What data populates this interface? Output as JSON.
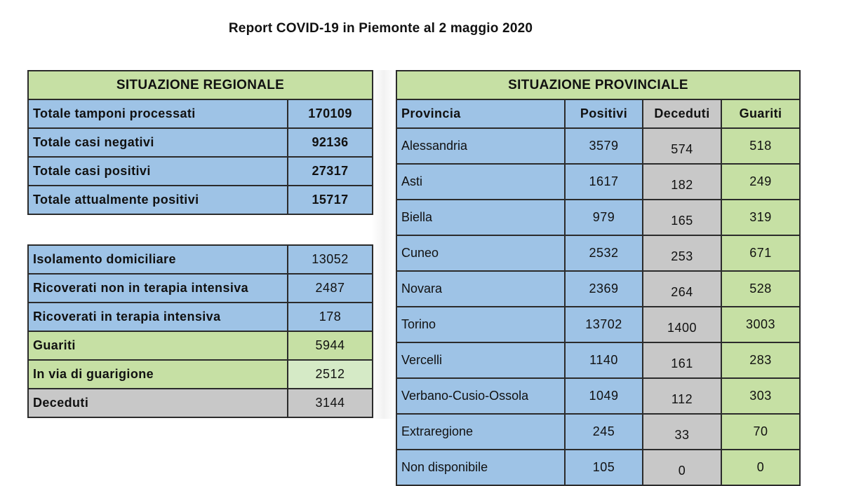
{
  "title": "Report COVID-19 in Piemonte al 2 maggio 2020",
  "regional": {
    "header": "SITUAZIONE REGIONALE",
    "totals": [
      {
        "label": "Totale tamponi processati",
        "value": "170109"
      },
      {
        "label": "Totale casi negativi",
        "value": "92136"
      },
      {
        "label": "Totale casi positivi",
        "value": "27317"
      },
      {
        "label": "Totale attualmente positivi",
        "value": "15717"
      }
    ],
    "breakdown": [
      {
        "label": "Isolamento domiciliare",
        "value": "13052"
      },
      {
        "label": "Ricoverati non in terapia intensiva",
        "value": "2487"
      },
      {
        "label": "Ricoverati in terapia intensiva",
        "value": "178"
      },
      {
        "label": "Guariti",
        "value": "5944"
      },
      {
        "label": "In via di guarigione",
        "value": "2512"
      },
      {
        "label": "Deceduti",
        "value": "3144"
      }
    ]
  },
  "provincial": {
    "header": "SITUAZIONE PROVINCIALE",
    "columns": [
      "Provincia",
      "Positivi",
      "Deceduti",
      "Guariti"
    ],
    "rows": [
      {
        "provincia": "Alessandria",
        "positivi": "3579",
        "deceduti": "574",
        "guariti": "518"
      },
      {
        "provincia": "Asti",
        "positivi": "1617",
        "deceduti": "182",
        "guariti": "249"
      },
      {
        "provincia": "Biella",
        "positivi": "979",
        "deceduti": "165",
        "guariti": "319"
      },
      {
        "provincia": "Cuneo",
        "positivi": "2532",
        "deceduti": "253",
        "guariti": "671"
      },
      {
        "provincia": "Novara",
        "positivi": "2369",
        "deceduti": "264",
        "guariti": "528"
      },
      {
        "provincia": "Torino",
        "positivi": "13702",
        "deceduti": "1400",
        "guariti": "3003"
      },
      {
        "provincia": "Vercelli",
        "positivi": "1140",
        "deceduti": "161",
        "guariti": "283"
      },
      {
        "provincia": "Verbano-Cusio-Ossola",
        "positivi": "1049",
        "deceduti": "112",
        "guariti": "303"
      },
      {
        "provincia": "Extraregione",
        "positivi": "245",
        "deceduti": "33",
        "guariti": "70"
      },
      {
        "provincia": "Non disponibile",
        "positivi": "105",
        "deceduti": "0",
        "guariti": "0"
      }
    ]
  },
  "colors": {
    "header_green": "#c6e0a4",
    "light_green": "#d5eac6",
    "blue": "#9ec3e6",
    "gray": "#c8c8c8"
  }
}
